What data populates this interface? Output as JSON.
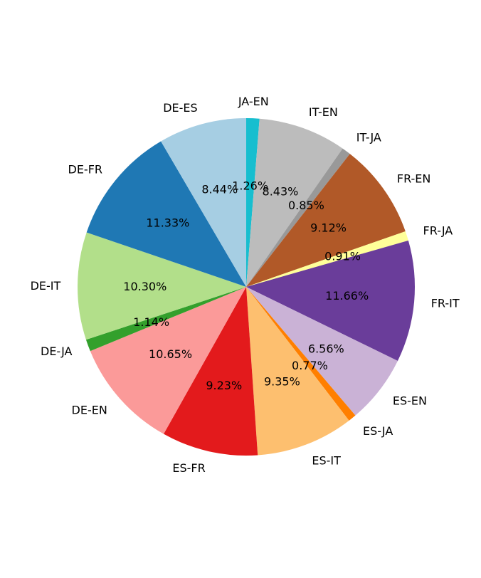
{
  "chart_data": {
    "type": "pie",
    "start_angle_deg": 90,
    "direction": "clockwise",
    "slices": [
      {
        "label": "JA-EN",
        "value": 1.26,
        "pct_label": "1.26%",
        "color": "#17becf"
      },
      {
        "label": "IT-EN",
        "value": 8.43,
        "pct_label": "8.43%",
        "color": "#bcbcbc"
      },
      {
        "label": "IT-JA",
        "value": 0.85,
        "pct_label": "0.85%",
        "color": "#999999"
      },
      {
        "label": "FR-EN",
        "value": 9.12,
        "pct_label": "9.12%",
        "color": "#b15928"
      },
      {
        "label": "FR-JA",
        "value": 0.91,
        "pct_label": "0.91%",
        "color": "#ffff99"
      },
      {
        "label": "FR-IT",
        "value": 11.66,
        "pct_label": "11.66%",
        "color": "#6a3d9a"
      },
      {
        "label": "ES-EN",
        "value": 6.56,
        "pct_label": "6.56%",
        "color": "#cab2d6"
      },
      {
        "label": "ES-JA",
        "value": 0.77,
        "pct_label": "0.77%",
        "color": "#ff7f00"
      },
      {
        "label": "ES-IT",
        "value": 9.35,
        "pct_label": "9.35%",
        "color": "#fdbf6f"
      },
      {
        "label": "ES-FR",
        "value": 9.23,
        "pct_label": "9.23%",
        "color": "#e31a1c"
      },
      {
        "label": "DE-EN",
        "value": 10.65,
        "pct_label": "10.65%",
        "color": "#fb9a99"
      },
      {
        "label": "DE-JA",
        "value": 1.14,
        "pct_label": "1.14%",
        "color": "#33a02c"
      },
      {
        "label": "DE-IT",
        "value": 10.3,
        "pct_label": "10.30%",
        "color": "#b2df8a"
      },
      {
        "label": "DE-FR",
        "value": 11.33,
        "pct_label": "11.33%",
        "color": "#1f78b4"
      },
      {
        "label": "DE-ES",
        "value": 8.44,
        "pct_label": "8.44%",
        "color": "#a6cee3"
      }
    ]
  }
}
